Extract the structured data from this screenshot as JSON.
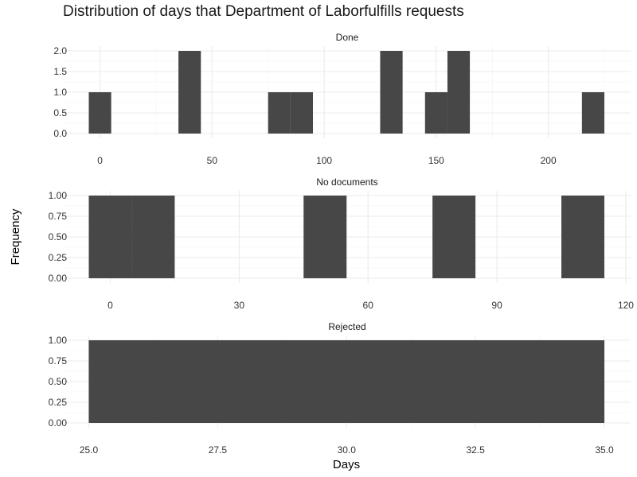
{
  "chart_data": {
    "type": "bar",
    "title": "Distribution of days that Department of Laborfulfills requests",
    "xlabel": "Days",
    "ylabel": "Frequency",
    "grid": true,
    "legend": "none",
    "panels": [
      {
        "name": "Done",
        "xlim": [
          -5,
          225
        ],
        "ylim": [
          0,
          2
        ],
        "x_ticks": [
          "0",
          "50",
          "100",
          "150",
          "200"
        ],
        "x_tick_values": [
          0,
          50,
          100,
          150,
          200
        ],
        "y_ticks": [
          "0.0",
          "0.5",
          "1.0",
          "1.5",
          "2.0"
        ],
        "y_tick_values": [
          0,
          0.5,
          1,
          1.5,
          2
        ],
        "bins": [
          {
            "x0": -5,
            "x1": 5,
            "value": 1
          },
          {
            "x0": 35,
            "x1": 45,
            "value": 2
          },
          {
            "x0": 75,
            "x1": 85,
            "value": 1
          },
          {
            "x0": 85,
            "x1": 95,
            "value": 1
          },
          {
            "x0": 125,
            "x1": 135,
            "value": 2
          },
          {
            "x0": 145,
            "x1": 155,
            "value": 1
          },
          {
            "x0": 155,
            "x1": 165,
            "value": 2
          },
          {
            "x0": 215,
            "x1": 225,
            "value": 1
          }
        ]
      },
      {
        "name": "No documents",
        "xlim": [
          -5,
          115
        ],
        "ylim": [
          0,
          1
        ],
        "x_ticks": [
          "0",
          "30",
          "60",
          "90",
          "120"
        ],
        "x_tick_values": [
          0,
          30,
          60,
          90,
          120
        ],
        "y_ticks": [
          "0.00",
          "0.25",
          "0.50",
          "0.75",
          "1.00"
        ],
        "y_tick_values": [
          0,
          0.25,
          0.5,
          0.75,
          1
        ],
        "bins": [
          {
            "x0": -5,
            "x1": 5,
            "value": 1
          },
          {
            "x0": 5,
            "x1": 15,
            "value": 1
          },
          {
            "x0": 45,
            "x1": 55,
            "value": 1
          },
          {
            "x0": 75,
            "x1": 85,
            "value": 1
          },
          {
            "x0": 105,
            "x1": 115,
            "value": 1
          }
        ]
      },
      {
        "name": "Rejected",
        "xlim": [
          25,
          35
        ],
        "ylim": [
          0,
          1
        ],
        "x_ticks": [
          "25.0",
          "27.5",
          "30.0",
          "32.5",
          "35.0"
        ],
        "x_tick_values": [
          25,
          27.5,
          30,
          32.5,
          35
        ],
        "y_ticks": [
          "0.00",
          "0.25",
          "0.50",
          "0.75",
          "1.00"
        ],
        "y_tick_values": [
          0,
          0.25,
          0.5,
          0.75,
          1
        ],
        "bins": [
          {
            "x0": 25,
            "x1": 35,
            "value": 1
          }
        ]
      }
    ],
    "colors": {
      "bar": "#474747",
      "grid": "#ebebeb"
    }
  }
}
